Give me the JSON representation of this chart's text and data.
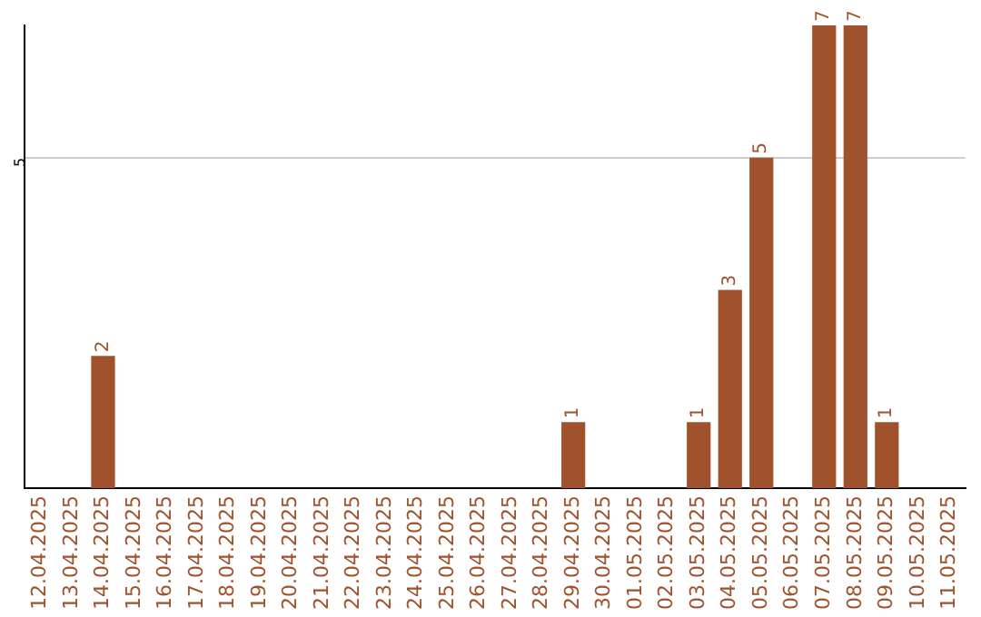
{
  "chart_data": {
    "type": "bar",
    "categories": [
      "12.04.2025",
      "13.04.2025",
      "14.04.2025",
      "15.04.2025",
      "16.04.2025",
      "17.04.2025",
      "18.04.2025",
      "19.04.2025",
      "20.04.2025",
      "21.04.2025",
      "22.04.2025",
      "23.04.2025",
      "24.04.2025",
      "25.04.2025",
      "26.04.2025",
      "27.04.2025",
      "28.04.2025",
      "29.04.2025",
      "30.04.2025",
      "01.05.2025",
      "02.05.2025",
      "03.05.2025",
      "04.05.2025",
      "05.05.2025",
      "06.05.2025",
      "07.05.2025",
      "08.05.2025",
      "09.05.2025",
      "10.05.2025",
      "11.05.2025"
    ],
    "values": [
      0,
      0,
      2,
      0,
      0,
      0,
      0,
      0,
      0,
      0,
      0,
      0,
      0,
      0,
      0,
      0,
      0,
      1,
      0,
      0,
      0,
      1,
      3,
      5,
      0,
      7,
      7,
      1,
      0,
      0
    ],
    "value_labels": [
      null,
      null,
      "2",
      null,
      null,
      null,
      null,
      null,
      null,
      null,
      null,
      null,
      null,
      null,
      null,
      null,
      null,
      "1",
      null,
      null,
      null,
      "1",
      "3",
      "5",
      null,
      "7",
      "7",
      "1",
      null,
      null
    ],
    "color": "#a0522d",
    "ylim": [
      0,
      7
    ],
    "yticks": [
      5
    ],
    "grid": "y",
    "legend": false
  }
}
